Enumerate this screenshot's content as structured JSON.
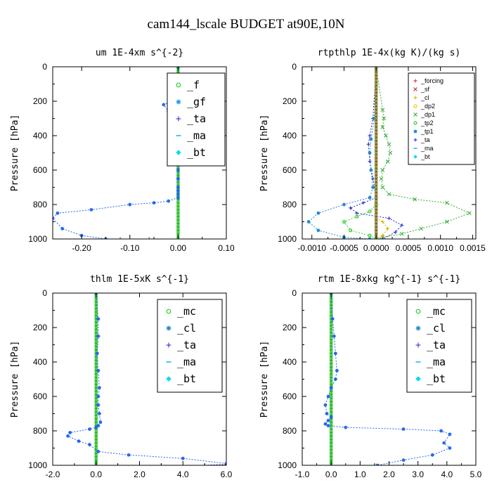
{
  "figure_title": "cam144_lscale  BUDGET at90E,10N",
  "chart_data": [
    {
      "type": "line",
      "title": "um   1E-4xm s^{-2}",
      "ylabel": "Pressure [hPa]",
      "xlim": [
        -0.26,
        0.1
      ],
      "ylim": [
        1000,
        0
      ],
      "xticks": [
        -0.2,
        -0.1,
        0.0,
        0.1
      ],
      "xtick_labels": [
        "-0.20",
        "-0.10",
        "0.00",
        "0.10"
      ],
      "yticks": [
        0,
        200,
        400,
        600,
        800,
        1000
      ],
      "ytick_labels": [
        "0",
        "200",
        "400",
        "600",
        "800",
        "1000"
      ],
      "legend_placement": "top-right",
      "legend_size": "large",
      "legend_entries": [
        {
          "label": "_f",
          "color": "#33cc33",
          "marker": "circle"
        },
        {
          "label": "_gf",
          "color": "#2299ee",
          "marker": "star"
        },
        {
          "label": "_ta",
          "color": "#2222cc",
          "marker": "plus"
        },
        {
          "label": "_ma",
          "color": "#22aaee",
          "marker": "dash"
        },
        {
          "label": "_bt",
          "color": "#00ddee",
          "marker": "diamond"
        }
      ],
      "series": [
        {
          "color": "#22aa22",
          "marker": "x",
          "style": "solid",
          "width": 4,
          "x": [
            0.0,
            0.0
          ],
          "y": [
            0,
            1000
          ]
        },
        {
          "color": "#2266ee",
          "marker": "star",
          "style": "dotted",
          "width": 1,
          "x": [
            0.0,
            0.0,
            0.02,
            0.05,
            0.07,
            0.04,
            0.0,
            -0.03,
            -0.02,
            -0.01,
            0.0,
            0.0,
            0.0,
            0.0,
            0.0,
            0.0,
            0.0,
            0.0,
            0.0,
            0.0,
            0.0,
            -0.02,
            -0.05,
            -0.1,
            -0.18,
            -0.25,
            -0.26,
            -0.24,
            -0.2,
            -0.15
          ],
          "y": [
            0,
            100,
            120,
            125,
            135,
            160,
            190,
            220,
            260,
            300,
            350,
            400,
            450,
            500,
            550,
            600,
            650,
            700,
            720,
            740,
            760,
            780,
            790,
            800,
            830,
            850,
            880,
            940,
            980,
            1000
          ]
        },
        {
          "color": "#2222cc",
          "marker": "plus",
          "style": "dotted",
          "width": 1,
          "x": [
            -0.12,
            -0.06,
            0.0
          ],
          "y": [
            1000,
            1000,
            1000
          ]
        }
      ]
    },
    {
      "type": "line",
      "title": "rtpthlp   1E-4x(kg K)/(kg s)",
      "ylabel": "Pressure [hPa]",
      "xlim": [
        -0.00115,
        0.00155
      ],
      "ylim": [
        1000,
        0
      ],
      "xticks": [
        -0.001,
        -0.0005,
        0.0,
        0.0005,
        0.001,
        0.0015
      ],
      "xtick_labels": [
        "-0.0010",
        "-0.0005",
        "0.0000",
        "0.0005",
        "0.0010",
        "0.0015"
      ],
      "yticks": [
        0,
        200,
        400,
        600,
        800,
        1000
      ],
      "ytick_labels": [
        "0",
        "200",
        "400",
        "600",
        "800",
        "1000"
      ],
      "legend_placement": "top-right",
      "legend_size": "small",
      "legend_entries": [
        {
          "label": "_forcing",
          "color": "#cc2222",
          "marker": "plus"
        },
        {
          "label": "_sf",
          "color": "#cc2222",
          "marker": "x"
        },
        {
          "label": "_cl",
          "color": "#ddaa00",
          "marker": "plus"
        },
        {
          "label": "_dp2",
          "color": "#eecc00",
          "marker": "circle"
        },
        {
          "label": "_dp1",
          "color": "#33aa33",
          "marker": "x"
        },
        {
          "label": "_tp2",
          "color": "#33cc33",
          "marker": "circle"
        },
        {
          "label": "_tp1",
          "color": "#2288cc",
          "marker": "star"
        },
        {
          "label": "_ta",
          "color": "#2222cc",
          "marker": "plus"
        },
        {
          "label": "_ma",
          "color": "#22aaee",
          "marker": "dash"
        },
        {
          "label": "_bt",
          "color": "#00ddee",
          "marker": "diamond"
        }
      ],
      "series": [
        {
          "color": "#33aa33",
          "marker": "x",
          "style": "dotted",
          "width": 1,
          "x": [
            0.0,
            0.0001,
            0.00012,
            0.0001,
            0.00015,
            0.0002,
            0.00022,
            0.00018,
            0.0001,
            8e-05,
            0.0001,
            0.0002,
            0.0006,
            0.0011,
            0.00145,
            0.0011,
            0.0007,
            0.0004,
            0.0001,
            0.0
          ],
          "y": [
            0,
            250,
            300,
            350,
            400,
            450,
            500,
            550,
            600,
            650,
            700,
            740,
            770,
            790,
            850,
            900,
            940,
            970,
            990,
            1000
          ]
        },
        {
          "color": "#2222cc",
          "marker": "plus",
          "style": "dotted",
          "width": 1,
          "x": [
            0.0,
            -5e-05,
            -0.0001,
            -0.00012,
            -0.0001,
            -5e-05,
            0.0,
            -0.0002,
            -0.0004,
            -0.0003,
            0.0002,
            0.0004,
            0.0003,
            0.0001
          ],
          "y": [
            0,
            300,
            400,
            450,
            550,
            650,
            760,
            790,
            820,
            850,
            880,
            920,
            960,
            1000
          ]
        },
        {
          "color": "#2288cc",
          "marker": "star",
          "style": "dotted",
          "width": 1,
          "x": [
            0.0,
            -3e-05,
            -8e-05,
            -0.0001,
            -8e-05,
            -5e-05,
            -0.0001,
            -0.0005,
            -0.0009,
            -0.00105,
            -0.0009,
            -0.0005,
            -0.0001
          ],
          "y": [
            0,
            300,
            420,
            500,
            600,
            700,
            760,
            800,
            850,
            900,
            950,
            990,
            1000
          ]
        },
        {
          "color": "#33cc33",
          "marker": "circle",
          "style": "dotted",
          "width": 1,
          "x": [
            0.0,
            -0.0001,
            -0.0003,
            -0.0005,
            -0.0004,
            -0.0001,
            0.0
          ],
          "y": [
            800,
            840,
            870,
            900,
            950,
            980,
            1000
          ]
        },
        {
          "color": "#ddaa00",
          "marker": "plus",
          "style": "dotted",
          "width": 1,
          "x": [
            0.0,
            0.0001,
            0.00018,
            0.0001,
            0.0
          ],
          "y": [
            880,
            900,
            940,
            980,
            1000
          ]
        },
        {
          "color": "#cc2222",
          "marker": "x",
          "style": "solid",
          "width": 4,
          "x": [
            0.0,
            0.0
          ],
          "y": [
            0,
            1000
          ]
        }
      ]
    },
    {
      "type": "line",
      "title": "thlm   1E-5xK s^{-1}",
      "ylabel": "Pressure [hPa]",
      "xlim": [
        -2.0,
        6.0
      ],
      "ylim": [
        1000,
        0
      ],
      "xticks": [
        -2.0,
        0.0,
        2.0,
        4.0,
        6.0
      ],
      "xtick_labels": [
        "-2.0",
        "0.0",
        "2.0",
        "4.0",
        "6.0"
      ],
      "yticks": [
        0,
        200,
        400,
        600,
        800,
        1000
      ],
      "ytick_labels": [
        "0",
        "200",
        "400",
        "600",
        "800",
        "1000"
      ],
      "legend_placement": "top-right",
      "legend_size": "large",
      "legend_entries": [
        {
          "label": "_mc",
          "color": "#33cc33",
          "marker": "circle"
        },
        {
          "label": "_cl",
          "color": "#2288cc",
          "marker": "star"
        },
        {
          "label": "_ta",
          "color": "#2222cc",
          "marker": "plus"
        },
        {
          "label": "_ma",
          "color": "#22aaee",
          "marker": "dash"
        },
        {
          "label": "_bt",
          "color": "#00ddee",
          "marker": "diamond"
        }
      ],
      "series": [
        {
          "color": "#22aa22",
          "marker": "x",
          "style": "solid",
          "width": 4,
          "x": [
            0.0,
            0.0
          ],
          "y": [
            0,
            1000
          ]
        },
        {
          "color": "#2266ee",
          "marker": "star",
          "style": "dotted",
          "width": 1,
          "x": [
            0.0,
            0.1,
            0.1,
            0.05,
            0.1,
            0.15,
            0.1,
            0.1,
            0.15,
            0.2,
            0.1,
            0.0,
            -0.3,
            -1.2,
            -1.3,
            -0.8,
            -0.3,
            0.1,
            1.5,
            4.0,
            6.0
          ],
          "y": [
            0,
            150,
            250,
            350,
            450,
            550,
            600,
            650,
            700,
            750,
            770,
            780,
            790,
            810,
            830,
            860,
            880,
            920,
            940,
            960,
            990
          ]
        },
        {
          "color": "#2222cc",
          "marker": "plus",
          "style": "dotted",
          "width": 1,
          "x": [
            1.0,
            3.0,
            5.0,
            6.0
          ],
          "y": [
            1000,
            1000,
            1000,
            995
          ]
        }
      ]
    },
    {
      "type": "line",
      "title": "rtm   1E-8xkg kg^{-1} s^{-1}",
      "ylabel": "Pressure [hPa]",
      "xlim": [
        -1.0,
        5.0
      ],
      "ylim": [
        1000,
        0
      ],
      "xticks": [
        -1.0,
        0.0,
        1.0,
        2.0,
        3.0,
        4.0,
        5.0
      ],
      "xtick_labels": [
        "-1.0",
        "0.0",
        "1.0",
        "2.0",
        "3.0",
        "4.0",
        "5.0"
      ],
      "yticks": [
        0,
        200,
        400,
        600,
        800,
        1000
      ],
      "ytick_labels": [
        "0",
        "200",
        "400",
        "600",
        "800",
        "1000"
      ],
      "legend_placement": "top-right",
      "legend_size": "large",
      "legend_entries": [
        {
          "label": "_mc",
          "color": "#33cc33",
          "marker": "circle"
        },
        {
          "label": "_cl",
          "color": "#2288cc",
          "marker": "star"
        },
        {
          "label": "_ta",
          "color": "#2222cc",
          "marker": "plus"
        },
        {
          "label": "_ma",
          "color": "#22aaee",
          "marker": "dash"
        },
        {
          "label": "_bt",
          "color": "#00ddee",
          "marker": "diamond"
        }
      ],
      "series": [
        {
          "color": "#22aa22",
          "marker": "x",
          "style": "solid",
          "width": 4,
          "x": [
            0.0,
            0.0
          ],
          "y": [
            0,
            1000
          ]
        },
        {
          "color": "#2266ee",
          "marker": "star",
          "style": "dotted",
          "width": 1,
          "x": [
            0.0,
            0.05,
            0.1,
            0.15,
            0.2,
            0.15,
            0.0,
            -0.1,
            -0.2,
            -0.15,
            0.0,
            -0.1,
            -0.2,
            -0.1,
            0.5,
            2.5,
            3.8,
            4.1,
            3.9,
            4.1,
            3.5,
            2.5,
            1.6
          ],
          "y": [
            0,
            150,
            250,
            350,
            450,
            500,
            550,
            600,
            650,
            700,
            720,
            740,
            760,
            770,
            780,
            790,
            800,
            820,
            870,
            900,
            940,
            970,
            1000
          ]
        }
      ]
    }
  ]
}
